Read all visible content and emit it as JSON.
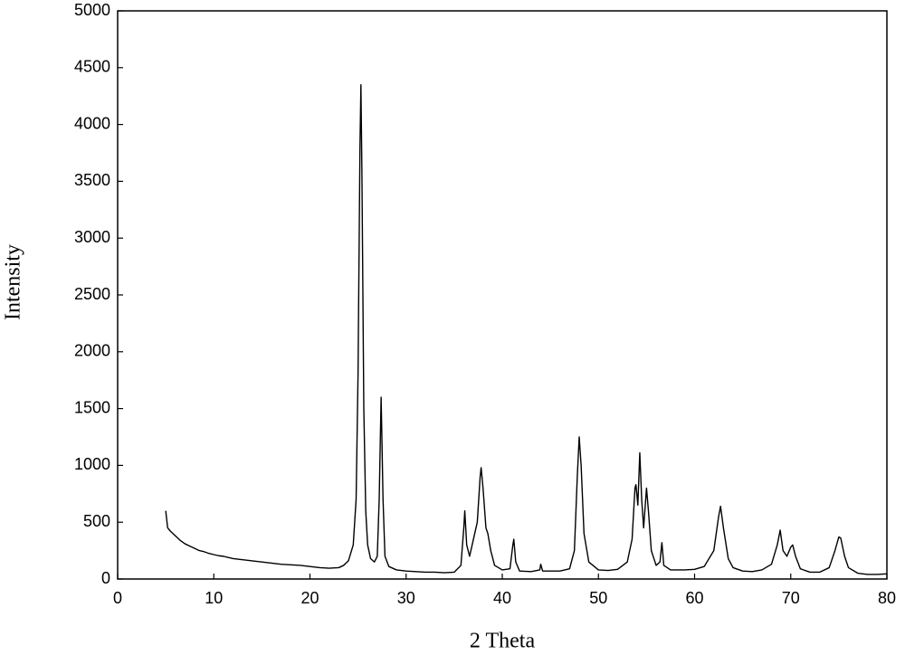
{
  "chart_data": {
    "type": "line",
    "xlabel": "2 Theta",
    "ylabel": "Intensity",
    "x": [
      5,
      5.2,
      5.5,
      6,
      6.5,
      7,
      7.5,
      8,
      8.5,
      9,
      9.5,
      10,
      10.5,
      11,
      11.5,
      12,
      13,
      14,
      15,
      16,
      17,
      18,
      19,
      20,
      21,
      22,
      23,
      23.5,
      24,
      24.5,
      24.8,
      25,
      25.2,
      25.3,
      25.4,
      25.6,
      25.8,
      26,
      26.3,
      26.7,
      27,
      27.2,
      27.4,
      27.6,
      27.8,
      28.2,
      29,
      30,
      31,
      32,
      33,
      34,
      35,
      35.7,
      36,
      36.1,
      36.3,
      36.6,
      37,
      37.4,
      37.7,
      37.8,
      38,
      38.3,
      38.5,
      38.8,
      39.2,
      40,
      40.8,
      41.1,
      41.2,
      41.4,
      41.8,
      43,
      43.9,
      44,
      44.2,
      46,
      47,
      47.5,
      47.8,
      48,
      48.2,
      48.5,
      49,
      50,
      51,
      52,
      53,
      53.5,
      53.8,
      53.9,
      54.1,
      54.3,
      54.5,
      54.7,
      55,
      55.2,
      55.5,
      56,
      56.4,
      56.6,
      56.8,
      57.5,
      59,
      60,
      61,
      62,
      62.5,
      62.7,
      63,
      63.5,
      64,
      65,
      66,
      67,
      68,
      68.6,
      68.9,
      69.2,
      69.6,
      70,
      70.2,
      70.5,
      71,
      72,
      73,
      74,
      74.6,
      75,
      75.2,
      75.6,
      76,
      77,
      78,
      79,
      80
    ],
    "series": [
      {
        "color": "#000000",
        "values": [
          600,
          450,
          420,
          380,
          340,
          310,
          290,
          270,
          250,
          240,
          225,
          215,
          205,
          200,
          190,
          180,
          170,
          160,
          150,
          140,
          130,
          125,
          120,
          110,
          100,
          95,
          100,
          120,
          160,
          300,
          700,
          1800,
          3800,
          4350,
          3600,
          1500,
          600,
          300,
          180,
          150,
          200,
          700,
          1600,
          700,
          200,
          110,
          80,
          70,
          65,
          60,
          60,
          55,
          60,
          120,
          450,
          600,
          300,
          200,
          350,
          500,
          900,
          980,
          800,
          450,
          400,
          250,
          120,
          80,
          90,
          300,
          350,
          150,
          70,
          65,
          80,
          130,
          70,
          70,
          90,
          250,
          900,
          1250,
          1000,
          400,
          150,
          80,
          75,
          85,
          150,
          350,
          800,
          830,
          650,
          1110,
          700,
          450,
          800,
          600,
          250,
          120,
          150,
          320,
          120,
          80,
          80,
          85,
          110,
          250,
          550,
          640,
          450,
          180,
          100,
          70,
          65,
          80,
          130,
          300,
          430,
          250,
          200,
          280,
          300,
          200,
          90,
          60,
          60,
          100,
          250,
          370,
          360,
          200,
          100,
          50,
          40,
          40,
          45
        ]
      }
    ],
    "xlim": [
      0,
      80
    ],
    "xticks": [
      0,
      10,
      20,
      30,
      40,
      50,
      60,
      70,
      80
    ],
    "ylim": [
      0,
      5000
    ],
    "yticks": [
      0,
      500,
      1000,
      1500,
      2000,
      2500,
      3000,
      3500,
      4000,
      4500,
      5000
    ],
    "grid": false
  }
}
